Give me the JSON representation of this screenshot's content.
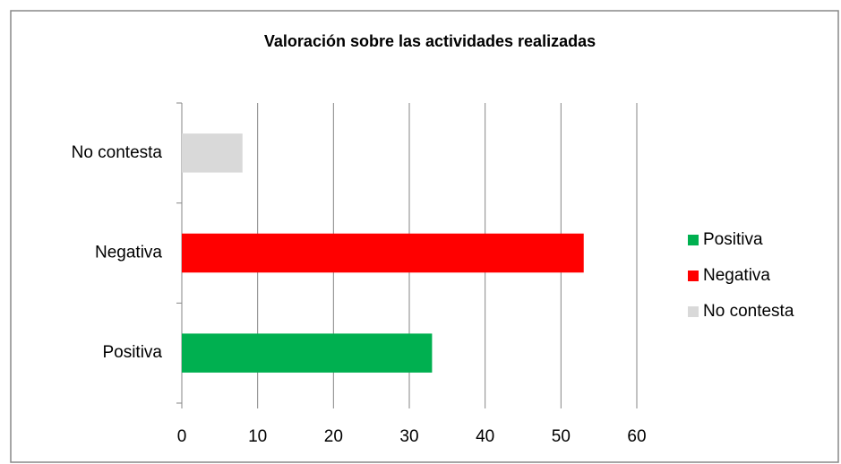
{
  "chart_data": {
    "type": "hbar",
    "title": "Valoración sobre las actividades realizadas",
    "categories": [
      "Positiva",
      "Negativa",
      "No contesta"
    ],
    "values": [
      33,
      53,
      8
    ],
    "colors": [
      "#00b050",
      "#ff0000",
      "#d9d9d9"
    ],
    "xlim": [
      0,
      60
    ],
    "xticks": [
      0,
      10,
      20,
      30,
      40,
      50,
      60
    ],
    "grid": true,
    "legend": "right"
  }
}
